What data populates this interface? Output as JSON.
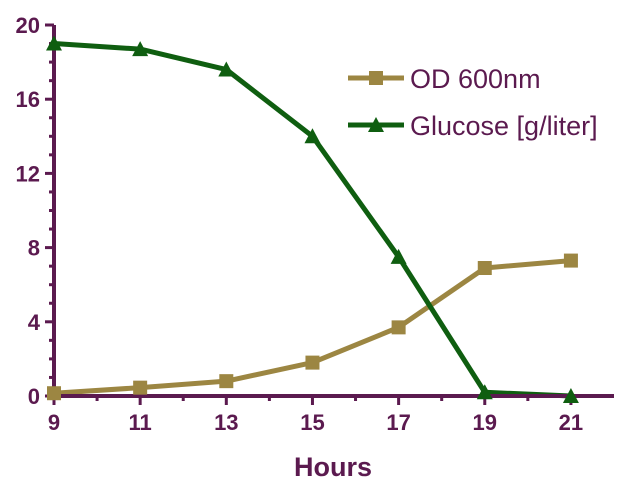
{
  "chart_data": {
    "type": "line",
    "title": "",
    "xlabel": "Hours",
    "ylabel": "",
    "x": [
      9,
      11,
      13,
      15,
      17,
      19,
      21
    ],
    "xlim": [
      9,
      22
    ],
    "ylim": [
      0,
      20
    ],
    "xticks": [
      "9",
      "11",
      "13",
      "15",
      "17",
      "19",
      "21"
    ],
    "yticks": [
      "0",
      "4",
      "8",
      "12",
      "16",
      "20"
    ],
    "grid": false,
    "legend_position": "top-right",
    "axis_color": "#5b1a4f",
    "series": [
      {
        "name": "OD 600nm",
        "marker": "square",
        "color": "#9c8642",
        "values": [
          0.15,
          0.45,
          0.8,
          1.8,
          3.7,
          6.9,
          7.3
        ]
      },
      {
        "name": "Glucose [g/liter]",
        "marker": "triangle",
        "color": "#0f5e10",
        "values": [
          19.0,
          18.7,
          17.6,
          14.0,
          7.5,
          0.2,
          0.0
        ]
      }
    ]
  }
}
